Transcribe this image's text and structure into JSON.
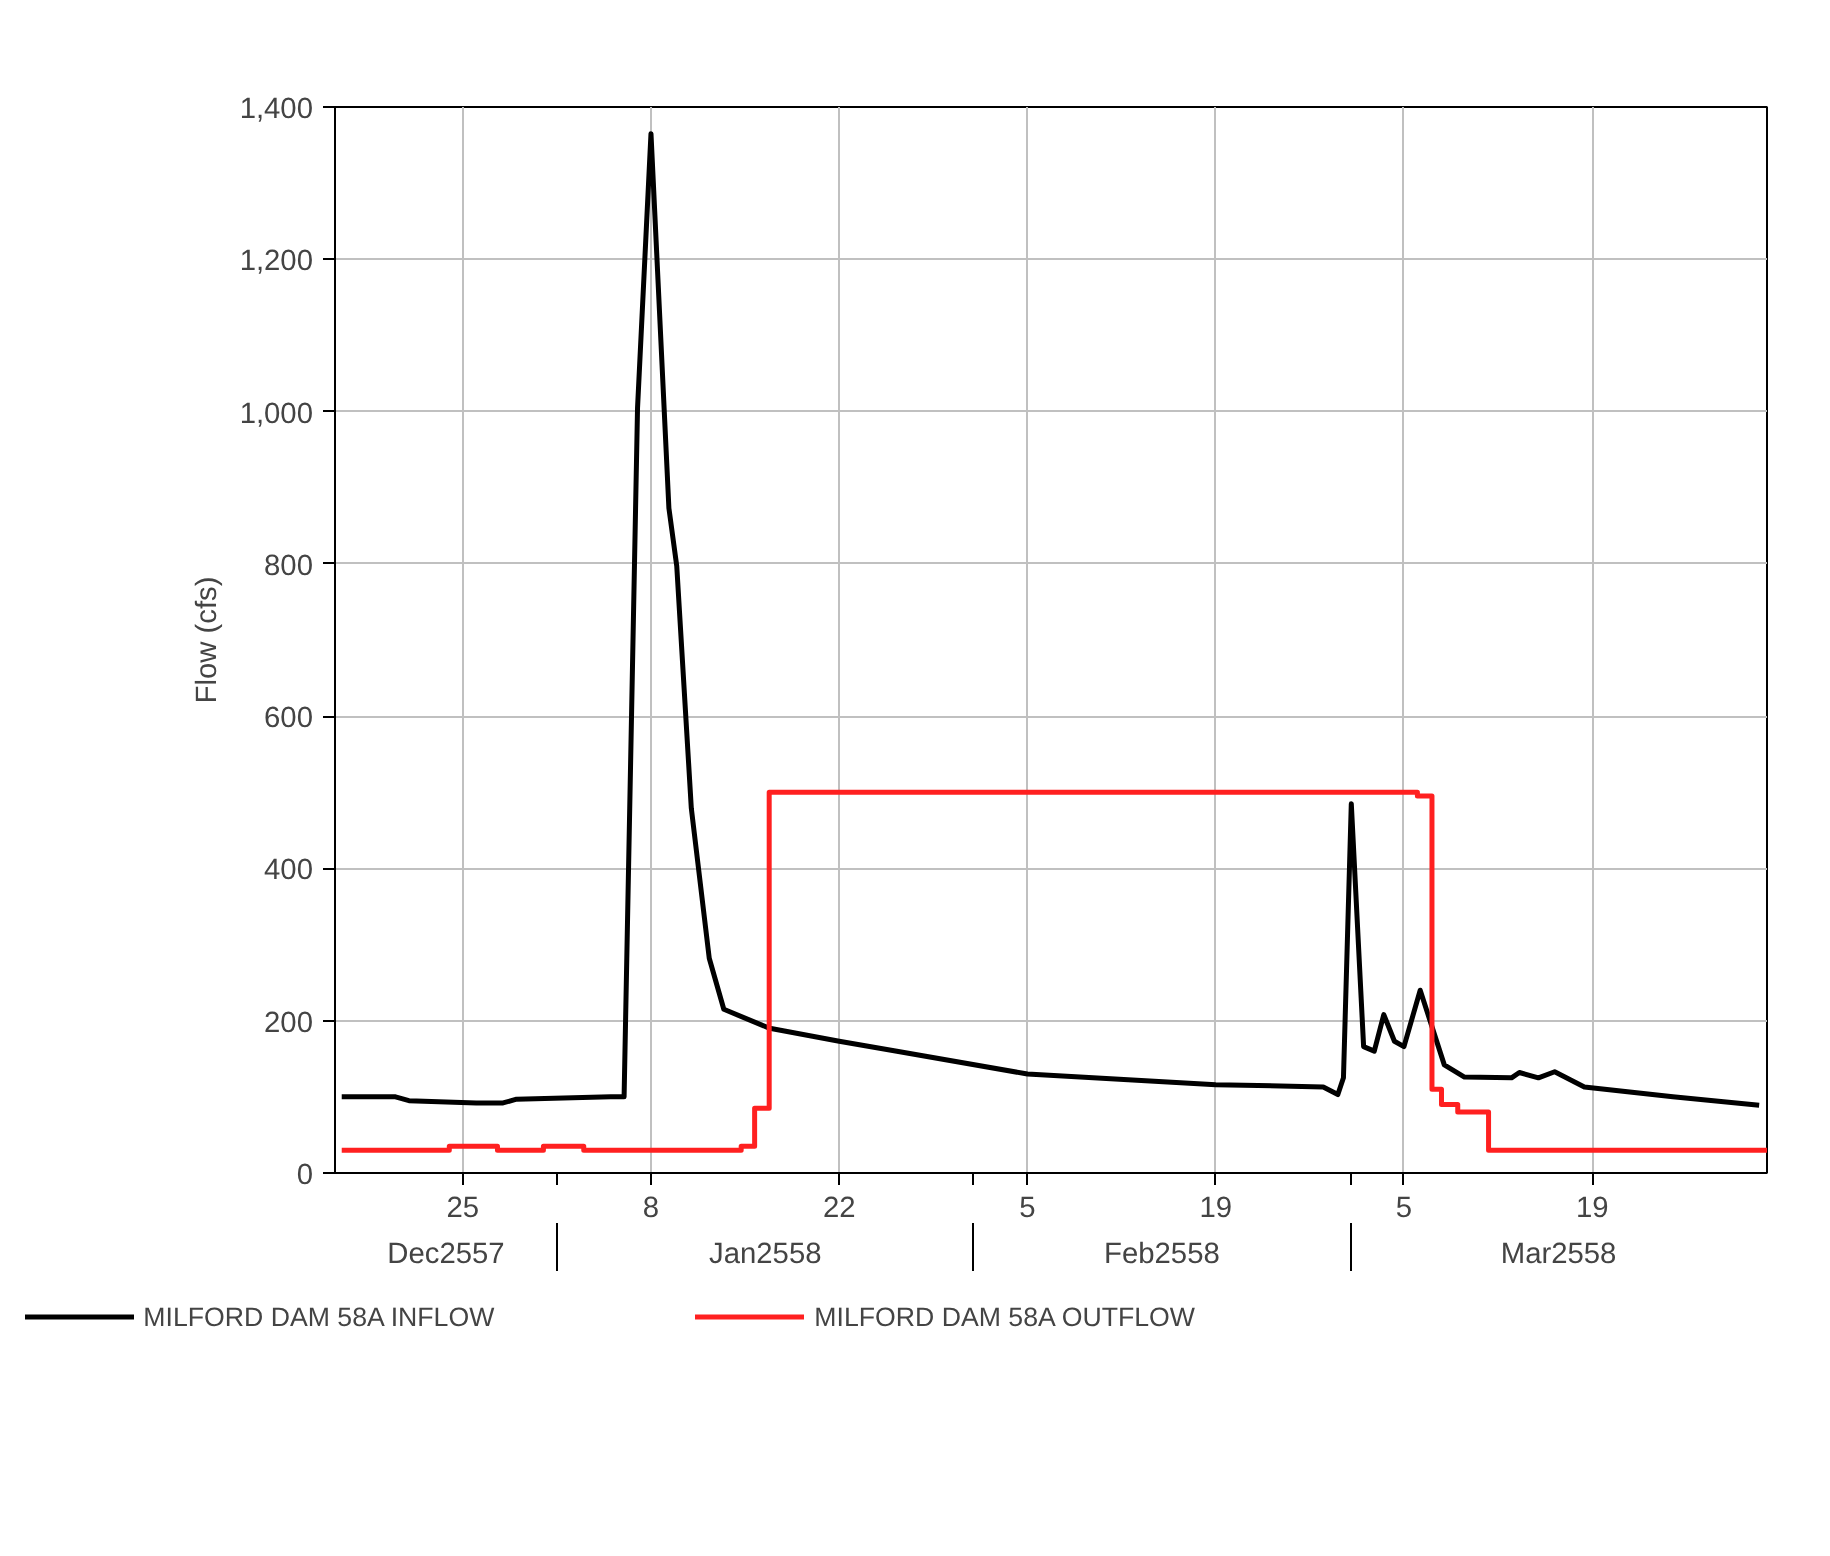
{
  "chart_data": {
    "type": "line",
    "ylabel": "Flow (cfs)",
    "xlim": [
      "2557-12-15T12:00",
      "2558-04-01"
    ],
    "ylim": [
      0,
      1400
    ],
    "xticks": [
      {
        "value": "2557-12-25",
        "label": "25"
      },
      {
        "value": "2558-01-01",
        "label": null
      },
      {
        "value": "2558-01-08",
        "label": "8"
      },
      {
        "value": "2558-01-22",
        "label": "22"
      },
      {
        "value": "2558-02-01",
        "label": null
      },
      {
        "value": "2558-02-05",
        "label": "5"
      },
      {
        "value": "2558-02-19",
        "label": "19"
      },
      {
        "value": "2558-03-01",
        "label": null
      },
      {
        "value": "2558-03-05",
        "label": "5"
      },
      {
        "value": "2558-03-19",
        "label": "19"
      }
    ],
    "yticks": [
      0,
      {
        "value": 200,
        "label": "200"
      },
      {
        "value": 400,
        "label": "400"
      },
      {
        "value": 600,
        "label": "600"
      },
      {
        "value": 800,
        "label": "800"
      },
      {
        "value": 1000,
        "label": "1,000"
      },
      {
        "value": 1200,
        "label": "1,200"
      },
      {
        "value": 1400,
        "label": "1,400"
      }
    ],
    "annotations": [
      "Dec2557",
      "Jan2558",
      "Feb2558",
      "Mar2558"
    ],
    "grid": true,
    "legend": "bottom",
    "line_style": "solid",
    "marker": "none",
    "series": [
      {
        "name": "MILFORD DAM 58A INFLOW",
        "color": "#000000",
        "x": [
          "2557-12-16",
          "2557-12-20",
          "2557-12-21",
          "2557-12-26",
          "2557-12-28",
          "2557-12-29",
          "2558-01-05",
          "2558-01-06",
          "2558-01-07",
          "2558-01-08",
          "2558-01-09T08:00",
          "2558-01-09T22:00",
          "2558-01-11",
          "2558-01-12T08:00",
          "2558-01-13T10:00",
          "2558-01-16T20:00",
          "2558-01-22",
          "2558-01-26T07:00",
          "2558-02-05",
          "2558-02-19",
          "2558-02-27",
          "2558-02-28T02:00",
          "2558-02-28T12:00",
          "2558-03-01T02:00",
          "2558-03-02",
          "2558-03-02T19:00",
          "2558-03-03T12:00",
          "2558-03-04T07:00",
          "2558-03-05",
          "2558-03-06T05:00",
          "2558-03-08",
          "2558-03-09T12:00",
          "2558-03-13",
          "2558-03-13T14:00",
          "2558-03-15",
          "2558-03-16T05:00",
          "2558-03-18T10:00",
          "2558-03-25",
          "2558-03-31T10:00"
        ],
        "values": [
          100,
          100,
          95,
          92,
          92,
          97,
          100,
          100,
          1005,
          1365,
          873,
          797,
          479,
          282,
          215,
          190,
          173,
          160,
          130,
          116,
          113,
          103,
          125,
          485,
          166,
          160,
          208,
          173,
          166,
          240,
          142,
          126,
          125,
          132,
          125,
          133,
          113,
          100,
          89
        ]
      },
      {
        "name": "MILFORD DAM 58A OUTFLOW",
        "color": "#ff2020",
        "type": "step",
        "x": [
          "2557-12-16",
          "2557-12-24",
          "2557-12-27T14:00",
          "2557-12-31",
          "2558-01-03",
          "2558-01-14T17:00",
          "2558-01-15T17:00",
          "2558-01-16T19:00",
          "2558-03-06",
          "2558-03-07T02:00",
          "2558-03-07T19:00",
          "2558-03-09",
          "2558-03-11T07:00",
          "2558-04-01"
        ],
        "values": [
          30,
          35,
          30,
          35,
          30,
          35,
          85,
          500,
          495,
          110,
          90,
          80,
          30,
          30
        ]
      }
    ]
  }
}
